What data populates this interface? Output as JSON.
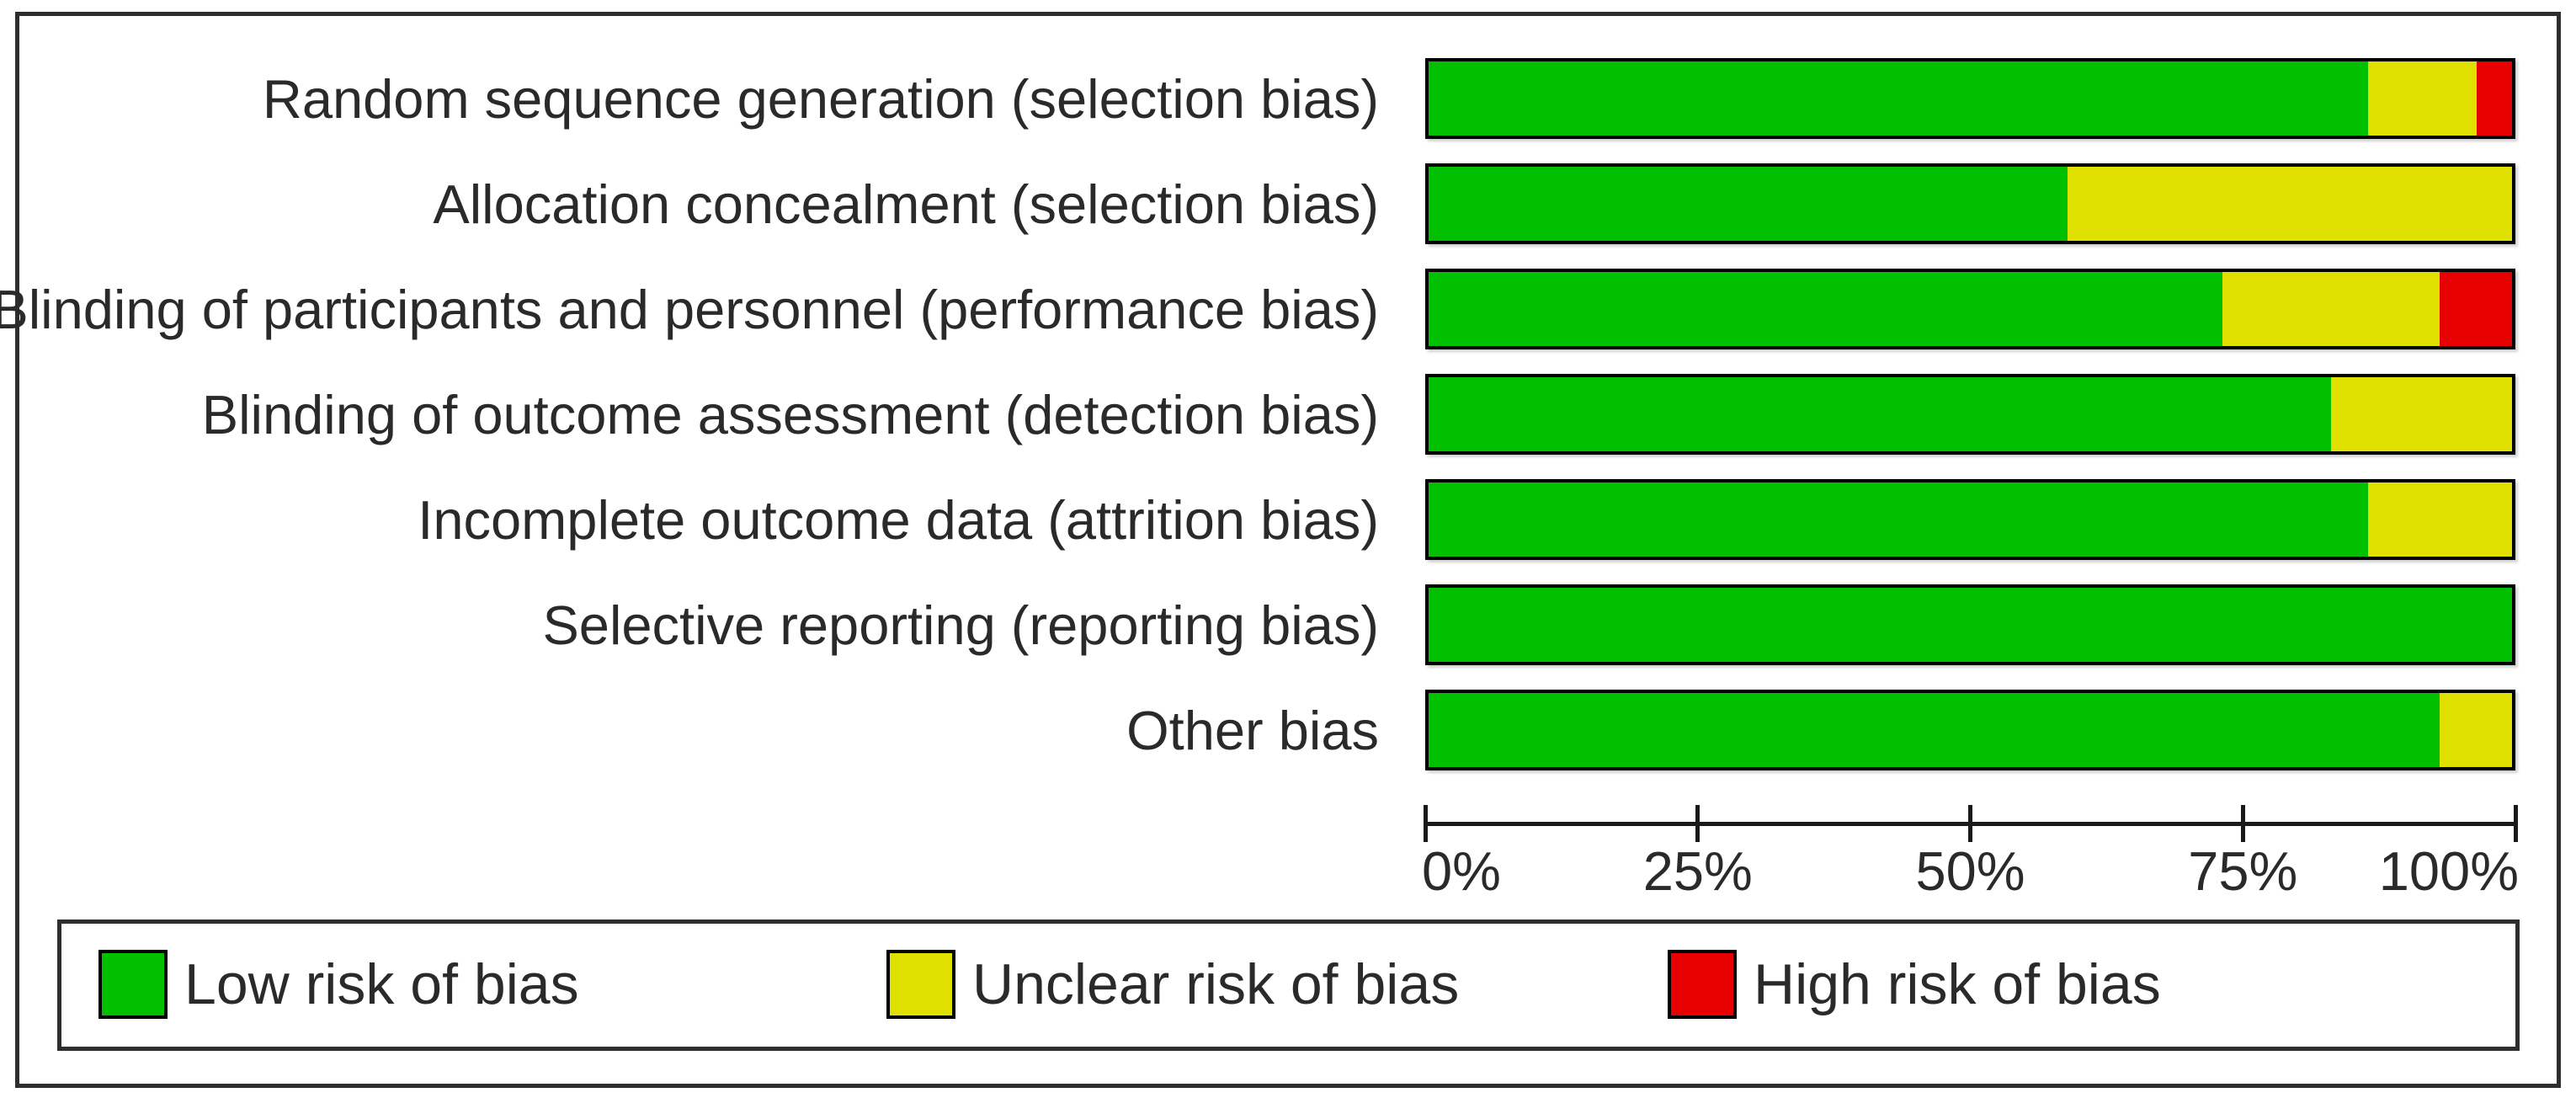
{
  "chart_data": {
    "type": "bar",
    "orientation": "horizontal",
    "stacked": true,
    "value_unit": "percent",
    "categories": [
      "Random sequence generation (selection bias)",
      "Allocation concealment (selection bias)",
      "Blinding of participants and personnel (performance bias)",
      "Blinding of outcome assessment (detection bias)",
      "Incomplete outcome data (attrition bias)",
      "Selective reporting (reporting bias)",
      "Other bias"
    ],
    "series": [
      {
        "name": "Low risk of bias",
        "color": "#00C000",
        "values": [
          86.7,
          59,
          73.3,
          83.3,
          86.7,
          100,
          93.3
        ]
      },
      {
        "name": "Unclear risk of bias",
        "color": "#E0E000",
        "values": [
          10,
          41,
          20,
          16.7,
          13.3,
          0,
          6.7
        ]
      },
      {
        "name": "High risk of bias",
        "color": "#E60000",
        "values": [
          3.3,
          0,
          6.7,
          0,
          0,
          0,
          0
        ]
      }
    ],
    "x_axis": {
      "range": [
        0,
        100
      ],
      "tick_labels": [
        "0%",
        "25%",
        "50%",
        "75%",
        "100%"
      ]
    },
    "legend": {
      "position": "bottom",
      "entries": [
        "Low risk of bias",
        "Unclear risk of bias",
        "High risk of bias"
      ]
    }
  },
  "colors": {
    "low_risk": "#00C000",
    "unclear_risk": "#E0E000",
    "high_risk": "#E60000",
    "frame": "#2e2e2e",
    "bar_outline": "#000000",
    "text": "#2a2a2a"
  }
}
